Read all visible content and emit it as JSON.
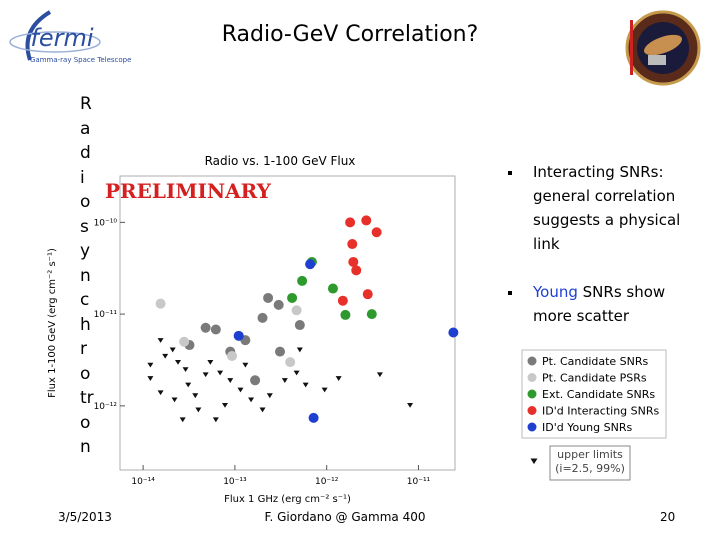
{
  "slide": {
    "title": "Radio-GeV Correlation?",
    "logo_text": "fermi",
    "logo_subtext": "Gamma-ray Space Telescope",
    "side_text": "Radio synchrotron",
    "bullets": [
      {
        "parts": [
          "Interacting SNRs: general correlation suggests a physical link"
        ]
      },
      {
        "parts": [
          "Young",
          " SNRs show more scatter"
        ]
      }
    ],
    "footer": {
      "date": "3/5/2013",
      "center": "F. Giordano @ Gamma 400",
      "page": "20"
    }
  },
  "chart_data": {
    "type": "scatter",
    "title": "Radio vs. 1-100 GeV Flux",
    "annotation": "PRELIMINARY",
    "x_label": "Flux 1 GHz (erg cm⁻² s⁻¹)",
    "y_label": "Flux 1-100 GeV (erg cm⁻² s⁻¹)",
    "x_log": true,
    "y_log": true,
    "xlim": [
      5.6e-15,
      2.5e-11
    ],
    "ylim": [
      2e-13,
      3.2e-10
    ],
    "xticks": [
      {
        "value": 1e-14,
        "label": "10⁻¹⁴"
      },
      {
        "value": 1e-13,
        "label": "10⁻¹³"
      },
      {
        "value": 1e-12,
        "label": "10⁻¹²"
      },
      {
        "value": 1e-11,
        "label": "10⁻¹¹"
      }
    ],
    "yticks": [
      {
        "value": 1e-12,
        "label": "10⁻¹²"
      },
      {
        "value": 1e-11,
        "label": "10⁻¹¹"
      },
      {
        "value": 1e-10,
        "label": "10⁻¹⁰"
      }
    ],
    "series": [
      {
        "name": "Pt. Candidate SNRs",
        "color": "#7a7a7a",
        "marker": "circle",
        "x": [
          4.8e-14,
          6.2e-14,
          3.2e-14,
          8.9e-14,
          2e-13,
          3e-13,
          2.3e-13,
          5.1e-13,
          1.3e-13,
          1.66e-13,
          3.1e-13
        ],
        "values": [
          7.1e-12,
          6.8e-12,
          4.6e-12,
          3.9e-12,
          9.1e-12,
          1.26e-11,
          1.5e-11,
          7.6e-12,
          5.2e-12,
          1.9e-12,
          3.9e-12
        ]
      },
      {
        "name": "Pt. Candidate PSRs",
        "color": "#c8c8c8",
        "marker": "circle",
        "x": [
          1.55e-14,
          2.8e-14,
          4.7e-13,
          9.3e-14,
          4e-13
        ],
        "values": [
          1.3e-11,
          5e-12,
          1.1e-11,
          3.5e-12,
          3e-12
        ]
      },
      {
        "name": "Ext. Candidate SNRs",
        "color": "#2e9a2e",
        "marker": "circle",
        "x": [
          4.2e-13,
          5.4e-13,
          6.9e-13,
          1.17e-12,
          1.6e-12,
          3.1e-12
        ],
        "values": [
          1.5e-11,
          2.3e-11,
          3.7e-11,
          1.9e-11,
          9.8e-12,
          1e-11
        ]
      },
      {
        "name": "ID'd Interacting SNRs",
        "color": "#e8302a",
        "marker": "circle",
        "x": [
          1.8e-12,
          2.7e-12,
          3.5e-12,
          1.9e-12,
          1.95e-12,
          2.1e-12,
          1.5e-12,
          2.8e-12
        ],
        "values": [
          1e-10,
          1.05e-10,
          7.8e-11,
          5.8e-11,
          3.7e-11,
          3e-11,
          1.4e-11,
          1.65e-11
        ]
      },
      {
        "name": "ID'd Young SNRs",
        "color": "#1f3fd0",
        "marker": "circle",
        "x": [
          6.6e-13,
          1.1e-13,
          7.2e-13,
          2.4e-11
        ],
        "values": [
          3.5e-11,
          5.8e-12,
          7.4e-13,
          6.3e-12
        ]
      },
      {
        "name": "upper limits (i=2.5, 99%)",
        "color": "#111111",
        "marker": "triangle",
        "x": [
          1.55e-14,
          1.74e-14,
          2.1e-14,
          2.4e-14,
          2.9e-14,
          1.2e-14,
          1.55e-14,
          2.2e-14,
          3.1e-14,
          3.7e-14,
          4.8e-14,
          5.4e-14,
          6.9e-14,
          8.9e-14,
          1.15e-13,
          1.5e-13,
          4e-14,
          6.2e-14,
          7.8e-14,
          2e-13,
          2.4e-13,
          3.5e-13,
          4.7e-13,
          5.9e-13,
          9.5e-13,
          1.35e-12,
          1.2e-14,
          2.7e-14,
          8.1e-12,
          3.8e-12,
          1.3e-13,
          5.1e-13
        ],
        "values": [
          5.2e-12,
          3.5e-12,
          4.1e-12,
          3e-12,
          2.5e-12,
          2e-12,
          1.4e-12,
          1.17e-12,
          1.7e-12,
          1.3e-12,
          2.2e-12,
          3e-12,
          2.3e-12,
          1.9e-12,
          1.5e-12,
          1.17e-12,
          9.1e-13,
          7.1e-13,
          1.02e-12,
          9.1e-13,
          1.3e-12,
          1.9e-12,
          2.3e-12,
          1.7e-12,
          1.5e-12,
          2e-12,
          2.8e-12,
          7.1e-13,
          1.02e-12,
          2.2e-12,
          2.8e-12,
          4.1e-12
        ]
      }
    ]
  }
}
